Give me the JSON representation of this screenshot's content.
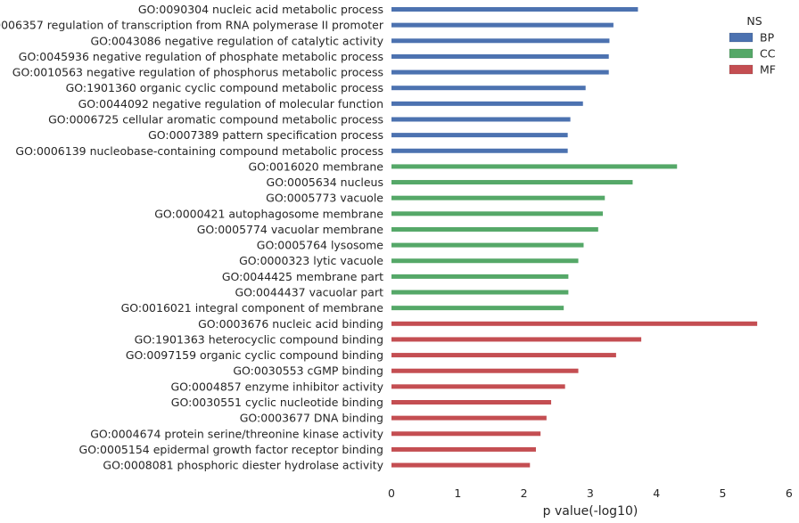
{
  "chart_data": {
    "type": "bar",
    "orientation": "horizontal",
    "xlabel": "p value(-log10)",
    "ylabel": "",
    "xlim": [
      0,
      6
    ],
    "xticks": [
      "0",
      "1",
      "2",
      "3",
      "4",
      "5",
      "6"
    ],
    "grid": false,
    "legend": {
      "title": "NS",
      "position": "top-right",
      "entries": [
        {
          "name": "BP",
          "color": "#4c72b0"
        },
        {
          "name": "CC",
          "color": "#55a868"
        },
        {
          "name": "MF",
          "color": "#c44e52"
        }
      ]
    },
    "bars": [
      {
        "label": "GO:0090304 nucleic acid metabolic process",
        "value": 3.72,
        "ns": "BP"
      },
      {
        "label": "GO:0006357 regulation of transcription from RNA polymerase II promoter",
        "value": 3.35,
        "ns": "BP"
      },
      {
        "label": "GO:0043086 negative regulation of catalytic activity",
        "value": 3.29,
        "ns": "BP"
      },
      {
        "label": "GO:0045936 negative regulation of phosphate metabolic process",
        "value": 3.28,
        "ns": "BP"
      },
      {
        "label": "GO:0010563 negative regulation of phosphorus metabolic process",
        "value": 3.28,
        "ns": "BP"
      },
      {
        "label": "GO:1901360 organic cyclic compound metabolic process",
        "value": 2.93,
        "ns": "BP"
      },
      {
        "label": "GO:0044092 negative regulation of molecular function",
        "value": 2.89,
        "ns": "BP"
      },
      {
        "label": "GO:0006725 cellular aromatic compound metabolic process",
        "value": 2.7,
        "ns": "BP"
      },
      {
        "label": "GO:0007389 pattern specification process",
        "value": 2.66,
        "ns": "BP"
      },
      {
        "label": "GO:0006139 nucleobase-containing compound metabolic process",
        "value": 2.66,
        "ns": "BP"
      },
      {
        "label": "GO:0016020 membrane",
        "value": 4.31,
        "ns": "CC"
      },
      {
        "label": "GO:0005634 nucleus",
        "value": 3.64,
        "ns": "CC"
      },
      {
        "label": "GO:0005773 vacuole",
        "value": 3.22,
        "ns": "CC"
      },
      {
        "label": "GO:0000421 autophagosome membrane",
        "value": 3.19,
        "ns": "CC"
      },
      {
        "label": "GO:0005774 vacuolar membrane",
        "value": 3.12,
        "ns": "CC"
      },
      {
        "label": "GO:0005764 lysosome",
        "value": 2.9,
        "ns": "CC"
      },
      {
        "label": "GO:0000323 lytic vacuole",
        "value": 2.82,
        "ns": "CC"
      },
      {
        "label": "GO:0044425 membrane part",
        "value": 2.67,
        "ns": "CC"
      },
      {
        "label": "GO:0044437 vacuolar part",
        "value": 2.67,
        "ns": "CC"
      },
      {
        "label": "GO:0016021 integral component of membrane",
        "value": 2.6,
        "ns": "CC"
      },
      {
        "label": "GO:0003676 nucleic acid binding",
        "value": 5.52,
        "ns": "MF"
      },
      {
        "label": "GO:1901363 heterocyclic compound binding",
        "value": 3.77,
        "ns": "MF"
      },
      {
        "label": "GO:0097159 organic cyclic compound binding",
        "value": 3.39,
        "ns": "MF"
      },
      {
        "label": "GO:0030553 cGMP binding",
        "value": 2.82,
        "ns": "MF"
      },
      {
        "label": "GO:0004857 enzyme inhibitor activity",
        "value": 2.62,
        "ns": "MF"
      },
      {
        "label": "GO:0030551 cyclic nucleotide binding",
        "value": 2.41,
        "ns": "MF"
      },
      {
        "label": "GO:0003677 DNA binding",
        "value": 2.34,
        "ns": "MF"
      },
      {
        "label": "GO:0004674 protein serine/threonine kinase activity",
        "value": 2.25,
        "ns": "MF"
      },
      {
        "label": "GO:0005154 epidermal growth factor receptor binding",
        "value": 2.18,
        "ns": "MF"
      },
      {
        "label": "GO:0008081 phosphoric diester hydrolase activity",
        "value": 2.09,
        "ns": "MF"
      }
    ]
  }
}
